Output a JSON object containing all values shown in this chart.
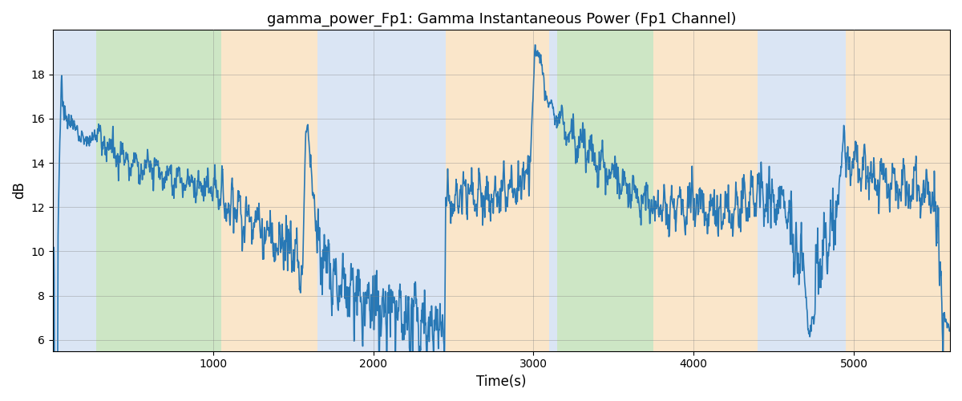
{
  "title": "gamma_power_Fp1: Gamma Instantaneous Power (Fp1 Channel)",
  "xlabel": "Time(s)",
  "ylabel": "dB",
  "line_color": "#2878b5",
  "line_width": 1.2,
  "background_regions": [
    {
      "xmin": 0,
      "xmax": 270,
      "color": "#aec6e8",
      "alpha": 0.5
    },
    {
      "xmin": 270,
      "xmax": 1050,
      "color": "#90c880",
      "alpha": 0.5
    },
    {
      "xmin": 1050,
      "xmax": 1650,
      "color": "#f5c98a",
      "alpha": 0.5
    },
    {
      "xmin": 1650,
      "xmax": 1750,
      "color": "#aec6e8",
      "alpha": 0.5
    },
    {
      "xmin": 1750,
      "xmax": 2450,
      "color": "#aec6e8",
      "alpha": 0.5
    },
    {
      "xmin": 2450,
      "xmax": 3050,
      "color": "#f5c98a",
      "alpha": 0.5
    },
    {
      "xmin": 3050,
      "xmax": 3150,
      "color": "#aec6e8",
      "alpha": 0.5
    },
    {
      "xmin": 3150,
      "xmax": 3750,
      "color": "#90c880",
      "alpha": 0.5
    },
    {
      "xmin": 3750,
      "xmax": 4400,
      "color": "#f5c98a",
      "alpha": 0.5
    },
    {
      "xmin": 4400,
      "xmax": 4950,
      "color": "#aec6e8",
      "alpha": 0.5
    },
    {
      "xmin": 4950,
      "xmax": 5600,
      "color": "#f5c98a",
      "alpha": 0.5
    }
  ],
  "xlim": [
    0,
    5600
  ],
  "ylim": [
    5.5,
    20
  ],
  "yticks": [
    6,
    8,
    10,
    12,
    14,
    16,
    18
  ],
  "xticks": [
    1000,
    2000,
    3000,
    4000,
    5000
  ],
  "figsize": [
    12,
    5
  ],
  "dpi": 100
}
